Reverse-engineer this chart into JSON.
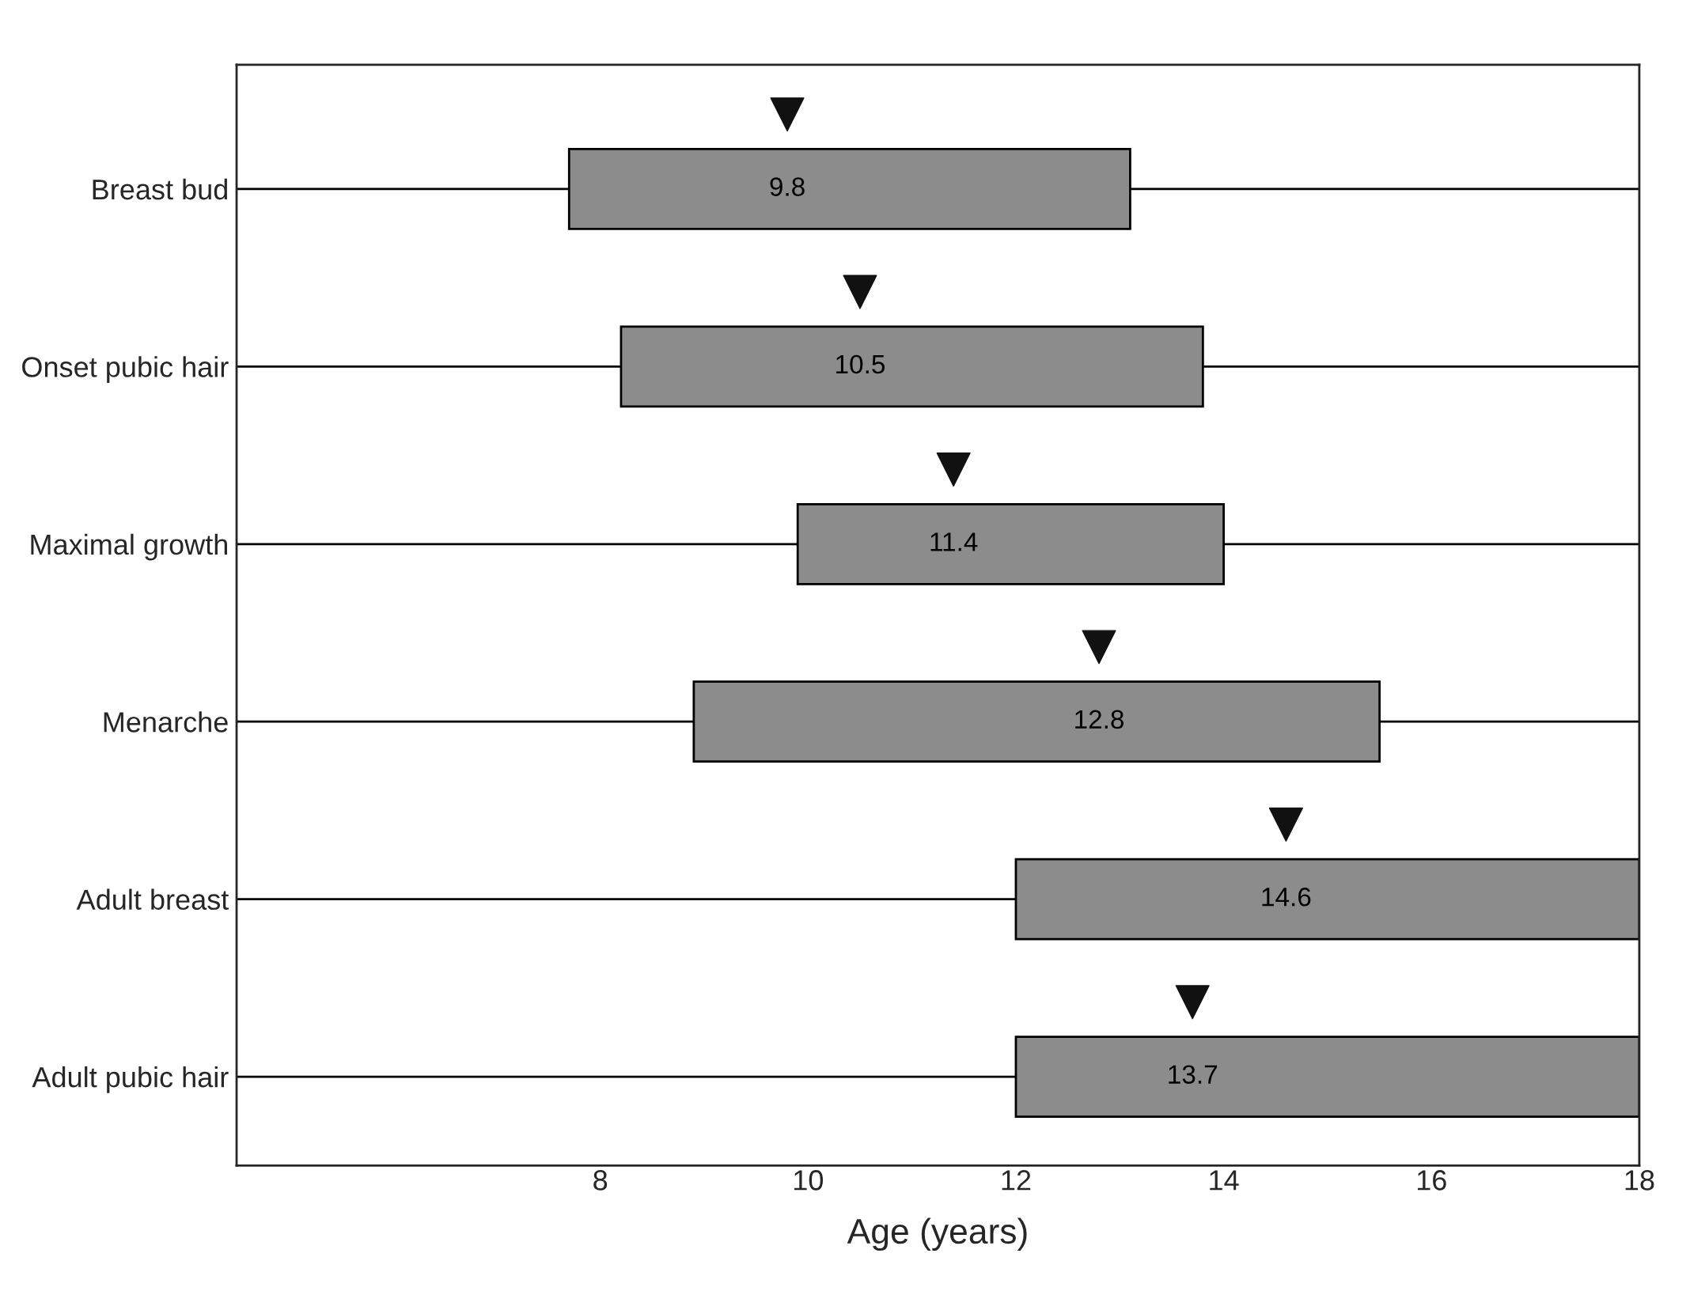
{
  "chart_data": {
    "type": "bar",
    "orientation": "horizontal",
    "xlabel": "Age (years)",
    "categories": [
      "Breast bud",
      "Onset pubic hair",
      "Maximal growth",
      "Menarche",
      "Adult breast",
      "Adult pubic hair"
    ],
    "base": [
      7.7,
      8.2,
      9.9,
      8.9,
      12.0,
      12.0
    ],
    "values": [
      5.4,
      5.6,
      4.1,
      6.6,
      6.0,
      6.0
    ],
    "color": "#8c8c8c",
    "series": [
      {
        "type": "scatter",
        "marker": "triangle",
        "color": "#111111",
        "values": [
          9.8,
          10.5,
          11.4,
          12.8,
          14.6,
          13.7
        ],
        "value_labels": [
          "9.8",
          "10.5",
          "11.4",
          "12.8",
          "14.6",
          "13.7"
        ]
      }
    ],
    "xlim": [
      4.5,
      18
    ],
    "xticks": [
      8,
      10,
      12,
      14,
      16,
      18
    ],
    "grid": "y"
  }
}
